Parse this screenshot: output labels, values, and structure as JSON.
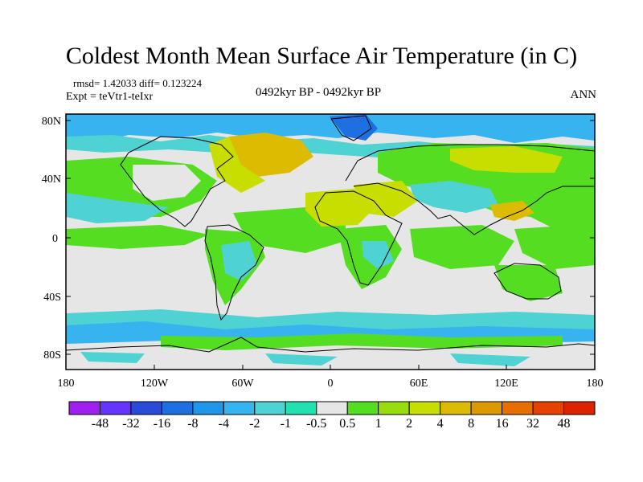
{
  "title": "Coldest Month Mean Surface Air Temperature (in C)",
  "stats": "rmsd= 1.42033 diff= 0.123224",
  "experiment": "Expt = teVtr1-teIxr",
  "period": "0492kyr BP - 0492kyr BP",
  "season": "ANN",
  "lat_ticks": [
    "80N",
    "40N",
    "0",
    "40S",
    "80S"
  ],
  "lon_ticks": [
    "180",
    "120W",
    "60W",
    "0",
    "60E",
    "120E",
    "180"
  ],
  "colorbar": {
    "labels": [
      "-48",
      "-32",
      "-16",
      "-8",
      "-4",
      "-2",
      "-1",
      "-0.5",
      "0.5",
      "1",
      "2",
      "4",
      "8",
      "16",
      "32",
      "48"
    ],
    "colors": [
      "#a020f0",
      "#6633ff",
      "#2a4bd7",
      "#1e6fe0",
      "#2196e8",
      "#35b4f0",
      "#4fd2d2",
      "#22e0b0",
      "#e6e6e6",
      "#55dd22",
      "#99dd11",
      "#c8dd00",
      "#ddbb00",
      "#dd9900",
      "#e66f00",
      "#e54200",
      "#dd2200"
    ]
  },
  "colors": {
    "ocean_base": "#e6e6e6",
    "coast": "#000000"
  }
}
